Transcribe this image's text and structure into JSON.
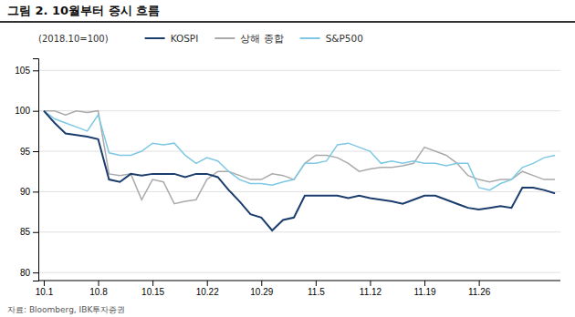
{
  "chart_data": {
    "type": "line",
    "title": "그림 2. 10월부터 증시 흐름",
    "subtitle": "(2018.10=100)",
    "source": "자료: Bloomberg, IBK투자증권",
    "categories": [
      "10.1",
      null,
      null,
      null,
      null,
      "10.8",
      null,
      null,
      null,
      null,
      "10.15",
      null,
      null,
      null,
      null,
      "10.22",
      null,
      null,
      null,
      null,
      "10.29",
      null,
      null,
      null,
      null,
      "11.5",
      null,
      null,
      null,
      null,
      "11.12",
      null,
      null,
      null,
      null,
      "11.19",
      null,
      null,
      null,
      null,
      "11.26",
      null,
      null,
      null,
      null,
      null,
      null,
      null
    ],
    "series": [
      {
        "name": "KOSPI",
        "color": "#1b3d6e",
        "values": [
          100.0,
          98.5,
          97.2,
          97.0,
          96.8,
          96.5,
          91.5,
          91.2,
          92.2,
          92.0,
          92.2,
          92.2,
          92.2,
          91.8,
          92.2,
          92.2,
          91.8,
          90.2,
          88.8,
          87.2,
          86.8,
          85.2,
          86.5,
          86.8,
          89.5,
          89.5,
          89.5,
          89.5,
          89.2,
          89.5,
          89.2,
          89.0,
          88.8,
          88.5,
          89.0,
          89.5,
          89.5,
          89.0,
          88.5,
          88.0,
          87.8,
          88.0,
          88.2,
          88.0,
          90.5,
          90.5,
          90.2,
          89.8
        ]
      },
      {
        "name": "상해 종합",
        "color": "#aaaaaa",
        "values": [
          100.0,
          100.0,
          99.5,
          100.0,
          99.8,
          100.0,
          92.2,
          92.0,
          92.2,
          89.0,
          91.5,
          91.2,
          88.5,
          88.8,
          89.0,
          91.5,
          92.5,
          92.5,
          92.0,
          91.5,
          91.5,
          92.2,
          92.0,
          91.5,
          93.5,
          94.5,
          94.5,
          94.2,
          93.5,
          92.5,
          92.8,
          93.0,
          93.0,
          93.2,
          93.5,
          95.5,
          95.0,
          94.5,
          93.5,
          92.0,
          91.5,
          91.2,
          91.5,
          91.5,
          92.5,
          92.0,
          91.5,
          91.5
        ]
      },
      {
        "name": "S&P500",
        "color": "#7ec8e3",
        "values": [
          100.0,
          99.0,
          98.5,
          98.0,
          97.5,
          99.5,
          94.8,
          94.5,
          94.5,
          95.0,
          96.0,
          95.8,
          96.0,
          94.5,
          93.5,
          94.2,
          93.8,
          92.5,
          91.5,
          91.0,
          91.0,
          90.8,
          91.2,
          91.5,
          93.5,
          93.5,
          93.8,
          95.8,
          96.0,
          95.5,
          95.0,
          93.5,
          93.8,
          93.5,
          93.8,
          93.5,
          93.5,
          93.2,
          93.5,
          93.5,
          90.5,
          90.2,
          91.0,
          91.5,
          93.0,
          93.5,
          94.2,
          94.5
        ]
      }
    ],
    "ylim": [
      79,
      106.5
    ],
    "yticks": [
      80,
      85,
      90,
      95,
      100,
      105
    ],
    "grid": "y",
    "legend": "top"
  }
}
